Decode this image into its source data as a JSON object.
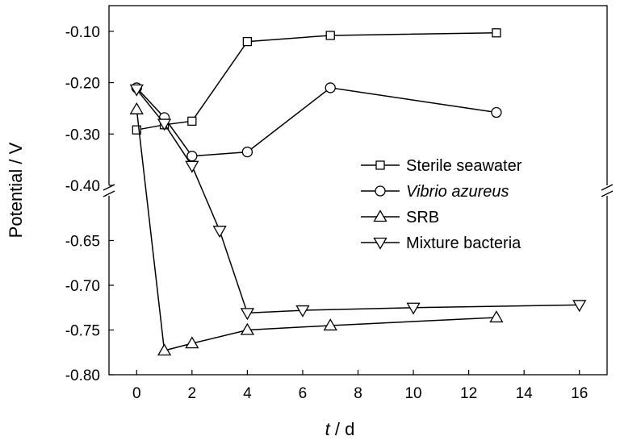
{
  "chart_data": {
    "type": "line",
    "xlabel": {
      "italic": "t",
      "rest": " / d"
    },
    "ylabel": "Potential / V",
    "xlim": [
      -1,
      17
    ],
    "x_ticks": [
      0,
      2,
      4,
      6,
      8,
      10,
      12,
      14,
      16
    ],
    "y_axis_break": true,
    "y_upper_segment": {
      "range": [
        -0.4,
        -0.05
      ],
      "ticks": [
        -0.1,
        -0.2,
        -0.3,
        -0.4
      ],
      "tick_labels": [
        "-0.10",
        "-0.20",
        "-0.30",
        "-0.40"
      ]
    },
    "y_lower_segment": {
      "range": [
        -0.8,
        -0.6
      ],
      "ticks": [
        -0.65,
        -0.7,
        -0.75,
        -0.8
      ],
      "tick_labels": [
        "-0.65",
        "-0.70",
        "-0.75",
        "-0.80"
      ]
    },
    "legend_position": "center-right",
    "grid": false,
    "series": [
      {
        "name": "Sterile seawater",
        "italic": false,
        "marker": "square",
        "points": [
          [
            0,
            -0.292
          ],
          [
            1,
            -0.282
          ],
          [
            2,
            -0.275
          ],
          [
            4,
            -0.12
          ],
          [
            7,
            -0.108
          ],
          [
            13,
            -0.103
          ]
        ]
      },
      {
        "name": "Vibrio azureus",
        "italic": true,
        "marker": "circle",
        "points": [
          [
            0,
            -0.21
          ],
          [
            1,
            -0.268
          ],
          [
            2,
            -0.343
          ],
          [
            4,
            -0.335
          ],
          [
            7,
            -0.21
          ],
          [
            13,
            -0.258
          ]
        ]
      },
      {
        "name": "SRB",
        "italic": false,
        "marker": "triangle-up",
        "points": [
          [
            0,
            -0.252
          ],
          [
            1,
            -0.773
          ],
          [
            2,
            -0.765
          ],
          [
            4,
            -0.75
          ],
          [
            7,
            -0.745
          ],
          [
            13,
            -0.736
          ]
        ]
      },
      {
        "name": "Mixture bacteria",
        "italic": false,
        "marker": "triangle-down",
        "points": [
          [
            0,
            -0.213
          ],
          [
            1,
            -0.28
          ],
          [
            2,
            -0.362
          ],
          [
            3,
            -0.639
          ],
          [
            4,
            -0.731
          ],
          [
            6,
            -0.728
          ],
          [
            10,
            -0.725
          ],
          [
            16,
            -0.722
          ]
        ]
      }
    ]
  }
}
